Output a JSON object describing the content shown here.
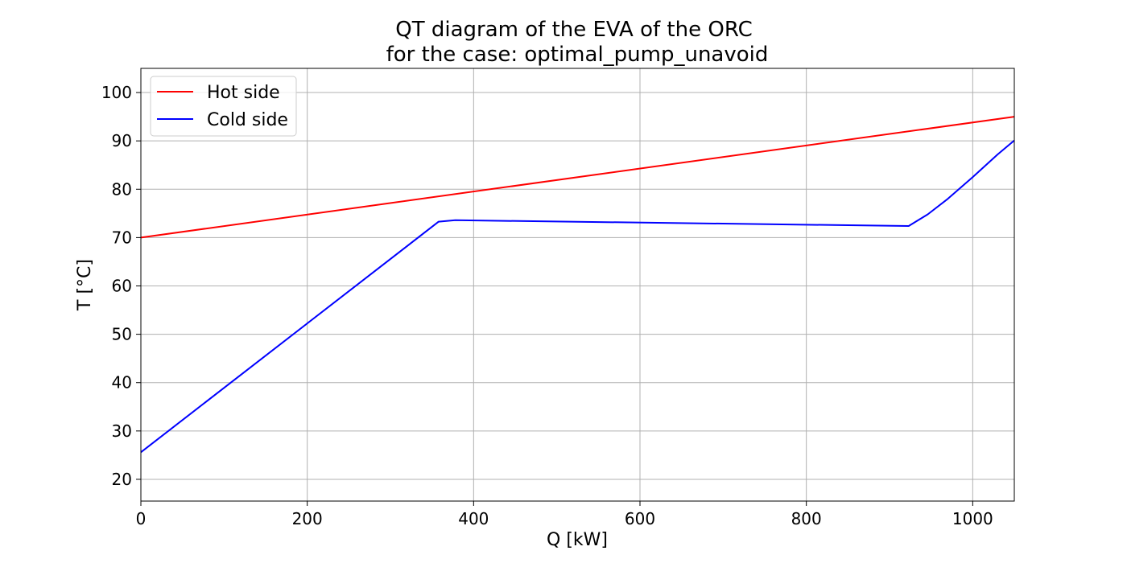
{
  "chart_data": {
    "type": "line",
    "title_line1": "QT diagram of the EVA of the ORC",
    "title_line2": "for the case: optimal_pump_unavoid",
    "xlabel": "Q [kW]",
    "ylabel": "T [°C]",
    "xlim": [
      0,
      1050
    ],
    "ylim": [
      15.5,
      105
    ],
    "xticks": [
      0,
      200,
      400,
      600,
      800,
      1000
    ],
    "yticks": [
      20,
      30,
      40,
      50,
      60,
      70,
      80,
      90,
      100
    ],
    "grid": true,
    "legend_position": "upper-left",
    "series": [
      {
        "name": "Hot side",
        "color": "#ff0000",
        "x": [
          0,
          1050
        ],
        "y": [
          70,
          95
        ]
      },
      {
        "name": "Cold side",
        "color": "#0000ff",
        "x": [
          0,
          358,
          378,
          923,
          946,
          970,
          1000,
          1030,
          1050
        ],
        "y": [
          25.6,
          73.3,
          73.6,
          72.4,
          74.8,
          78.0,
          82.5,
          87.2,
          90.1
        ]
      }
    ]
  }
}
